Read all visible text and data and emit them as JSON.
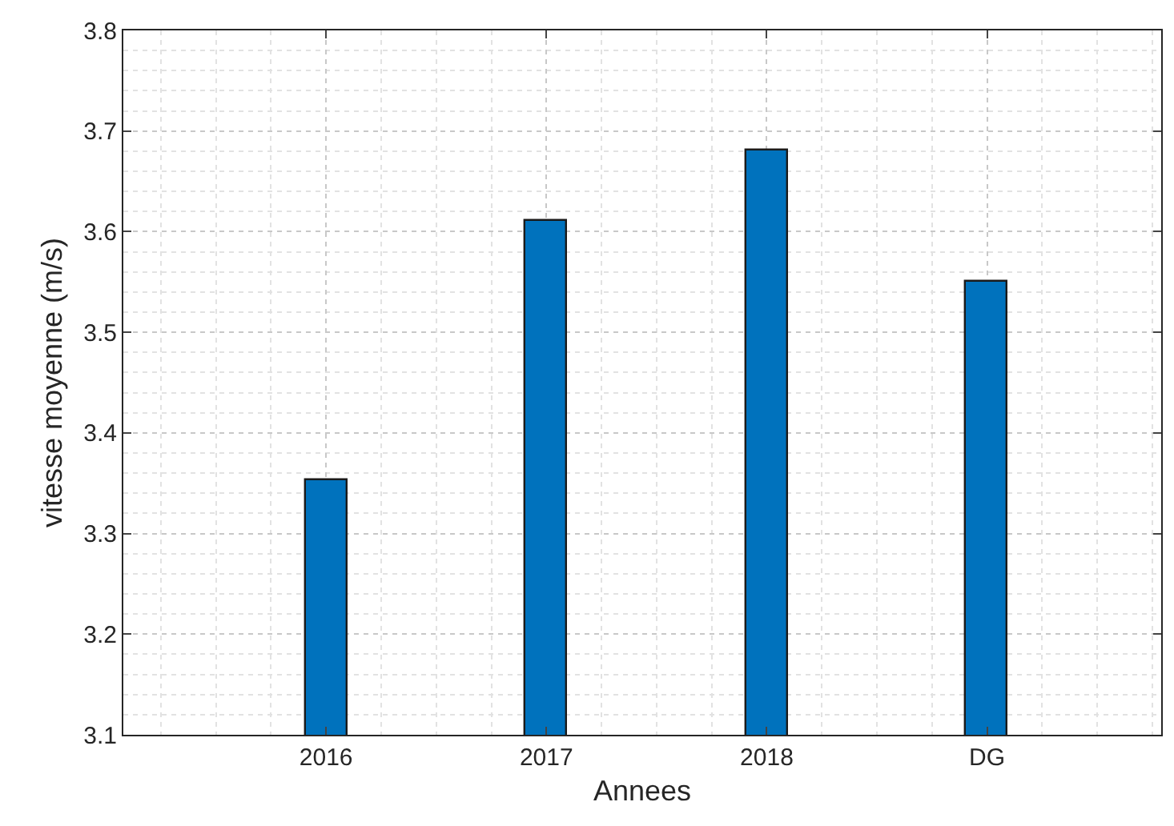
{
  "chart_data": {
    "type": "bar",
    "xlabel": "Annees",
    "ylabel": "vitesse moyenne (m/s)",
    "categories": [
      "2016",
      "2017",
      "2018",
      "DG"
    ],
    "values": [
      3.353,
      3.61,
      3.68,
      3.55
    ],
    "color": "#0072bd",
    "ylim": [
      3.1,
      3.8
    ],
    "yticks": [
      3.1,
      3.2,
      3.3,
      3.4,
      3.5,
      3.6,
      3.7,
      3.8
    ],
    "grid": true,
    "legend": false
  }
}
